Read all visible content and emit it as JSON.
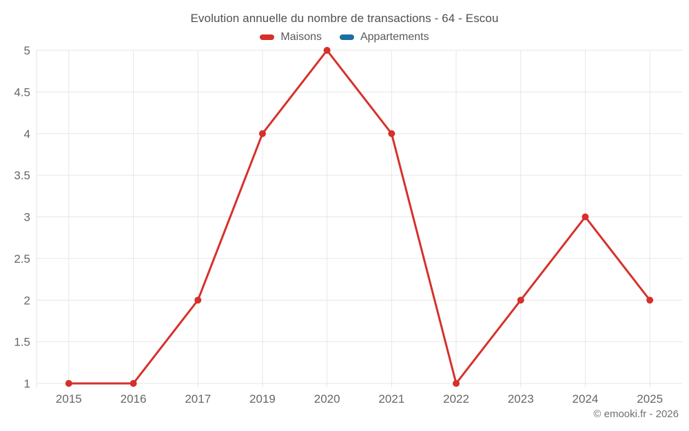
{
  "header": {
    "title": "Evolution annuelle du nombre de transactions - 64 - Escou",
    "legend": [
      {
        "label": "Maisons",
        "color": "#d6302b"
      },
      {
        "label": "Appartements",
        "color": "#1c6ea4"
      }
    ]
  },
  "chart_data": {
    "type": "line",
    "title": "Evolution annuelle du nombre de transactions - 64 - Escou",
    "categories": [
      "2015",
      "2016",
      "2017",
      "2019",
      "2020",
      "2021",
      "2022",
      "2023",
      "2024",
      "2025"
    ],
    "series": [
      {
        "name": "Maisons",
        "color": "#d6302b",
        "values": [
          1,
          1,
          2,
          4,
          5,
          4,
          1,
          2,
          3,
          2
        ]
      },
      {
        "name": "Appartements",
        "color": "#1c6ea4",
        "values": []
      }
    ],
    "xlabel": "",
    "ylabel": "",
    "ylim": [
      1,
      5
    ],
    "ytick_step": 0.5,
    "yticks": [
      "1",
      "1.5",
      "2",
      "2.5",
      "3",
      "3.5",
      "4",
      "4.5",
      "5"
    ],
    "grid": true,
    "grid_color": "#e6e6e6",
    "tick_color": "#666666",
    "legend_position": "top",
    "marker": "circle"
  },
  "footer": {
    "copyright": "© emooki.fr - 2026"
  }
}
